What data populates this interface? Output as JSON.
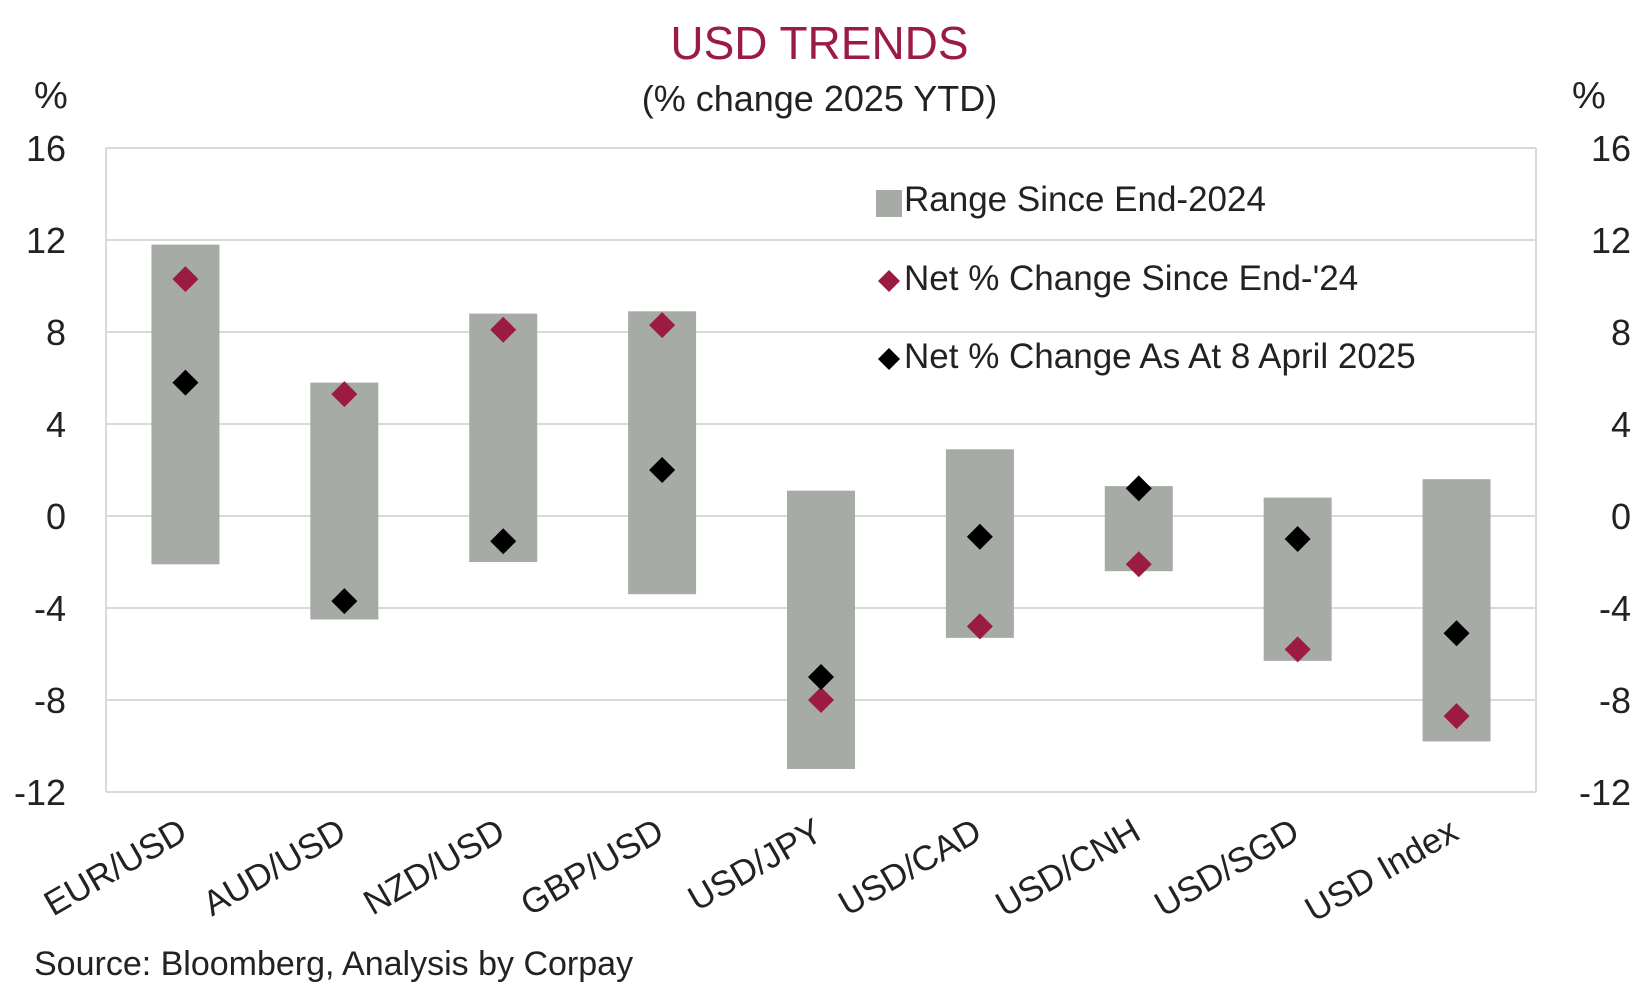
{
  "chart_data": {
    "type": "range-dot",
    "title": "USD TRENDS",
    "subtitle": "(% change 2025 YTD)",
    "ylabel_left": "%",
    "ylabel_right": "%",
    "ylim": [
      -12,
      16
    ],
    "yticks": [
      -12,
      -8,
      -4,
      0,
      4,
      8,
      12,
      16
    ],
    "grid": true,
    "legend_position": "top-right",
    "categories": [
      "EUR/USD",
      "AUD/USD",
      "NZD/USD",
      "GBP/USD",
      "USD/JPY",
      "USD/CAD",
      "USD/CNH",
      "USD/SGD",
      "USD Index"
    ],
    "series": [
      {
        "name": "Range Since End-2024",
        "kind": "range",
        "color": "#a7aba6",
        "low": [
          -2.1,
          -4.5,
          -2.0,
          -3.4,
          -11.0,
          -5.3,
          -2.4,
          -6.3,
          -9.8
        ],
        "high": [
          11.8,
          5.8,
          8.8,
          8.9,
          1.1,
          2.9,
          1.3,
          0.8,
          1.6
        ]
      },
      {
        "name": "Net % Change Since End-'24",
        "kind": "point",
        "color": "#9b1b42",
        "values": [
          10.3,
          5.3,
          8.1,
          8.3,
          -8.0,
          -4.8,
          -2.1,
          -5.8,
          -8.7
        ]
      },
      {
        "name": "Net % Change As At 8 April 2025",
        "kind": "point",
        "color": "#000000",
        "values": [
          5.8,
          -3.7,
          -1.1,
          2.0,
          -7.0,
          -0.9,
          1.2,
          -1.0,
          -5.1
        ]
      }
    ]
  },
  "source": "Source: Bloomberg, Analysis by Corpay"
}
